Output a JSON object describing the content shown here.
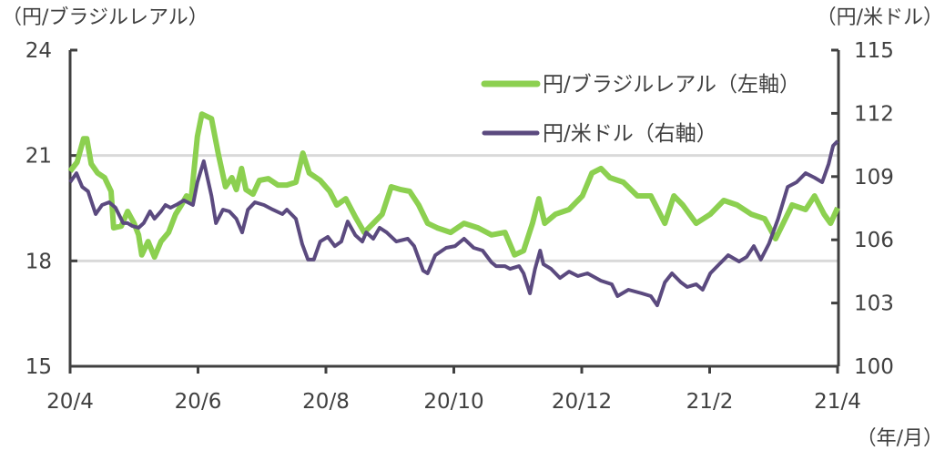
{
  "chart_data": {
    "type": "line",
    "left_axis_label": "（円/ブラジルレアル）",
    "right_axis_label": "（円/米ドル）",
    "x_unit_label": "（年/月）",
    "x_unit": "months since 2020/4",
    "x_ticks": [
      {
        "t": 0,
        "label": "20/4"
      },
      {
        "t": 2,
        "label": "20/6"
      },
      {
        "t": 4,
        "label": "20/8"
      },
      {
        "t": 6,
        "label": "20/10"
      },
      {
        "t": 8,
        "label": "20/12"
      },
      {
        "t": 10,
        "label": "21/2"
      },
      {
        "t": 12,
        "label": "21/4"
      }
    ],
    "ylim_left": [
      15,
      24
    ],
    "yticks_left": [
      "15",
      "18",
      "21",
      "24"
    ],
    "ylim_right": [
      100,
      115
    ],
    "yticks_right": [
      "100",
      "103",
      "106",
      "109",
      "112",
      "115"
    ],
    "gridlines_left": [
      18,
      21
    ],
    "legend_position": "top-right",
    "colors": {
      "brl": "#8cd050",
      "usd": "#5b4a7f",
      "axis": "#404040",
      "grid": "#d9d9d9"
    },
    "series": [
      {
        "name": "円/ブラジルレアル（左軸）",
        "axis": "left",
        "points": [
          [
            0,
            20.55
          ],
          [
            0.11,
            20.81
          ],
          [
            0.21,
            21.48
          ],
          [
            0.26,
            21.48
          ],
          [
            0.33,
            20.76
          ],
          [
            0.43,
            20.5
          ],
          [
            0.54,
            20.37
          ],
          [
            0.64,
            19.98
          ],
          [
            0.68,
            18.94
          ],
          [
            0.8,
            18.99
          ],
          [
            0.9,
            19.41
          ],
          [
            1.0,
            19.07
          ],
          [
            1.07,
            18.74
          ],
          [
            1.12,
            18.17
          ],
          [
            1.22,
            18.55
          ],
          [
            1.32,
            18.11
          ],
          [
            1.42,
            18.55
          ],
          [
            1.54,
            18.81
          ],
          [
            1.65,
            19.33
          ],
          [
            1.74,
            19.59
          ],
          [
            1.82,
            19.85
          ],
          [
            1.89,
            19.72
          ],
          [
            1.99,
            21.54
          ],
          [
            2.06,
            22.18
          ],
          [
            2.21,
            22.05
          ],
          [
            2.32,
            21.02
          ],
          [
            2.43,
            20.11
          ],
          [
            2.53,
            20.37
          ],
          [
            2.6,
            20.03
          ],
          [
            2.68,
            20.63
          ],
          [
            2.75,
            20.03
          ],
          [
            2.86,
            19.9
          ],
          [
            2.96,
            20.29
          ],
          [
            3.1,
            20.34
          ],
          [
            3.25,
            20.16
          ],
          [
            3.39,
            20.16
          ],
          [
            3.53,
            20.24
          ],
          [
            3.64,
            21.07
          ],
          [
            3.74,
            20.5
          ],
          [
            3.91,
            20.29
          ],
          [
            4.06,
            19.98
          ],
          [
            4.17,
            19.59
          ],
          [
            4.31,
            19.77
          ],
          [
            4.46,
            19.25
          ],
          [
            4.6,
            18.81
          ],
          [
            4.74,
            19.07
          ],
          [
            4.88,
            19.33
          ],
          [
            5.02,
            20.11
          ],
          [
            5.17,
            20.03
          ],
          [
            5.31,
            19.98
          ],
          [
            5.45,
            19.59
          ],
          [
            5.59,
            19.07
          ],
          [
            5.74,
            18.94
          ],
          [
            5.95,
            18.81
          ],
          [
            6.16,
            19.07
          ],
          [
            6.38,
            18.94
          ],
          [
            6.59,
            18.74
          ],
          [
            6.8,
            18.81
          ],
          [
            6.95,
            18.17
          ],
          [
            7.09,
            18.29
          ],
          [
            7.23,
            19.07
          ],
          [
            7.33,
            19.77
          ],
          [
            7.42,
            19.07
          ],
          [
            7.59,
            19.33
          ],
          [
            7.8,
            19.46
          ],
          [
            8.01,
            19.85
          ],
          [
            8.16,
            20.5
          ],
          [
            8.3,
            20.63
          ],
          [
            8.44,
            20.37
          ],
          [
            8.65,
            20.24
          ],
          [
            8.87,
            19.85
          ],
          [
            9.08,
            19.85
          ],
          [
            9.3,
            19.07
          ],
          [
            9.44,
            19.85
          ],
          [
            9.58,
            19.59
          ],
          [
            9.79,
            19.07
          ],
          [
            10.01,
            19.33
          ],
          [
            10.22,
            19.72
          ],
          [
            10.43,
            19.59
          ],
          [
            10.65,
            19.33
          ],
          [
            10.86,
            19.2
          ],
          [
            11.03,
            18.63
          ],
          [
            11.15,
            19.07
          ],
          [
            11.29,
            19.59
          ],
          [
            11.5,
            19.46
          ],
          [
            11.64,
            19.85
          ],
          [
            11.79,
            19.33
          ],
          [
            11.89,
            19.07
          ],
          [
            12,
            19.51
          ]
        ]
      },
      {
        "name": "円/米ドル（右軸）",
        "axis": "right",
        "points": [
          [
            0,
            108.73
          ],
          [
            0.1,
            109.16
          ],
          [
            0.19,
            108.51
          ],
          [
            0.28,
            108.3
          ],
          [
            0.4,
            107.22
          ],
          [
            0.5,
            107.65
          ],
          [
            0.61,
            107.78
          ],
          [
            0.71,
            107.52
          ],
          [
            0.83,
            106.79
          ],
          [
            0.9,
            106.79
          ],
          [
            0.97,
            106.66
          ],
          [
            1.07,
            106.57
          ],
          [
            1.15,
            106.79
          ],
          [
            1.25,
            107.35
          ],
          [
            1.32,
            107.0
          ],
          [
            1.42,
            107.35
          ],
          [
            1.49,
            107.65
          ],
          [
            1.57,
            107.52
          ],
          [
            1.68,
            107.69
          ],
          [
            1.78,
            107.87
          ],
          [
            1.92,
            107.65
          ],
          [
            1.99,
            108.73
          ],
          [
            2.09,
            109.73
          ],
          [
            2.21,
            108.08
          ],
          [
            2.28,
            106.79
          ],
          [
            2.39,
            107.43
          ],
          [
            2.49,
            107.35
          ],
          [
            2.6,
            107.0
          ],
          [
            2.69,
            106.35
          ],
          [
            2.78,
            107.43
          ],
          [
            2.89,
            107.78
          ],
          [
            3.03,
            107.65
          ],
          [
            3.17,
            107.43
          ],
          [
            3.32,
            107.22
          ],
          [
            3.39,
            107.43
          ],
          [
            3.53,
            107.0
          ],
          [
            3.63,
            105.79
          ],
          [
            3.72,
            105.06
          ],
          [
            3.81,
            105.06
          ],
          [
            3.91,
            105.92
          ],
          [
            4.03,
            106.14
          ],
          [
            4.14,
            105.7
          ],
          [
            4.24,
            105.92
          ],
          [
            4.34,
            106.87
          ],
          [
            4.46,
            106.22
          ],
          [
            4.57,
            105.92
          ],
          [
            4.63,
            106.35
          ],
          [
            4.74,
            106.05
          ],
          [
            4.84,
            106.57
          ],
          [
            4.95,
            106.35
          ],
          [
            5.1,
            105.92
          ],
          [
            5.28,
            106.05
          ],
          [
            5.38,
            105.7
          ],
          [
            5.52,
            104.54
          ],
          [
            5.59,
            104.41
          ],
          [
            5.71,
            105.27
          ],
          [
            5.88,
            105.62
          ],
          [
            6.02,
            105.7
          ],
          [
            6.16,
            106.05
          ],
          [
            6.31,
            105.62
          ],
          [
            6.45,
            105.49
          ],
          [
            6.59,
            104.93
          ],
          [
            6.66,
            104.75
          ],
          [
            6.8,
            104.75
          ],
          [
            6.88,
            104.62
          ],
          [
            7.02,
            104.75
          ],
          [
            7.09,
            104.41
          ],
          [
            7.19,
            103.46
          ],
          [
            7.27,
            104.62
          ],
          [
            7.35,
            105.49
          ],
          [
            7.4,
            104.84
          ],
          [
            7.52,
            104.62
          ],
          [
            7.66,
            104.19
          ],
          [
            7.8,
            104.49
          ],
          [
            7.94,
            104.28
          ],
          [
            8.09,
            104.41
          ],
          [
            8.3,
            104.06
          ],
          [
            8.47,
            103.89
          ],
          [
            8.56,
            103.33
          ],
          [
            8.73,
            103.63
          ],
          [
            8.94,
            103.46
          ],
          [
            9.08,
            103.33
          ],
          [
            9.18,
            102.89
          ],
          [
            9.3,
            103.98
          ],
          [
            9.41,
            104.41
          ],
          [
            9.55,
            103.98
          ],
          [
            9.65,
            103.76
          ],
          [
            9.79,
            103.89
          ],
          [
            9.89,
            103.63
          ],
          [
            10.01,
            104.41
          ],
          [
            10.15,
            104.84
          ],
          [
            10.29,
            105.27
          ],
          [
            10.46,
            104.97
          ],
          [
            10.58,
            105.19
          ],
          [
            10.69,
            105.7
          ],
          [
            10.8,
            105.06
          ],
          [
            10.93,
            105.83
          ],
          [
            11.07,
            107.0
          ],
          [
            11.22,
            108.51
          ],
          [
            11.36,
            108.73
          ],
          [
            11.5,
            109.16
          ],
          [
            11.64,
            108.95
          ],
          [
            11.76,
            108.73
          ],
          [
            11.86,
            109.6
          ],
          [
            11.93,
            110.46
          ],
          [
            12,
            110.68
          ]
        ]
      }
    ]
  }
}
